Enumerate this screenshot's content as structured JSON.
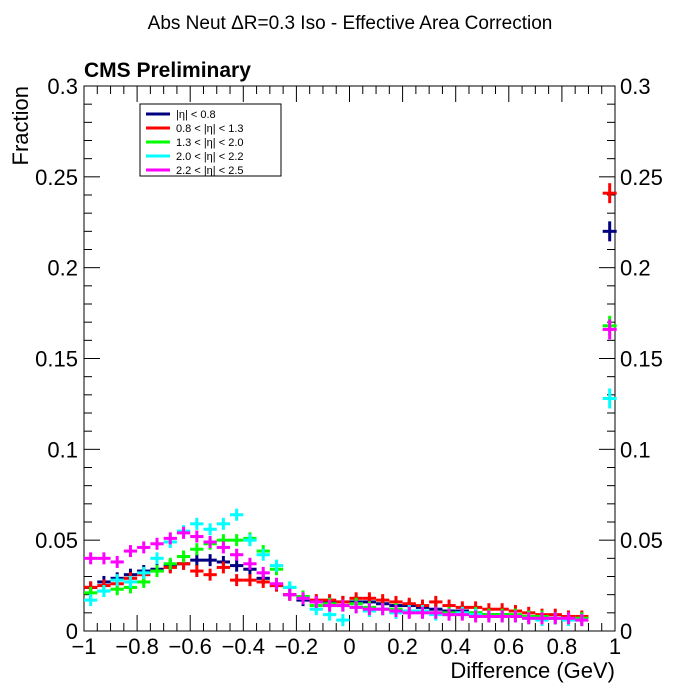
{
  "chart_data": {
    "type": "scatter",
    "title": "Abs Neut ΔR=0.3 Iso - Effective Area Correction",
    "label": "CMS Preliminary",
    "xlabel": "Difference (GeV)",
    "ylabel": "Fraction",
    "xlim": [
      -1,
      1
    ],
    "ylim": [
      0,
      0.3
    ],
    "xticks": [
      -1,
      -0.8,
      -0.6,
      -0.4,
      -0.2,
      0,
      0.2,
      0.4,
      0.6,
      0.8,
      1
    ],
    "xtick_labels": [
      "−1",
      "−0.8",
      "−0.6",
      "−0.4",
      "−0.2",
      "0",
      "0.2",
      "0.4",
      "0.6",
      "0.8",
      "1"
    ],
    "yticks": [
      0,
      0.05,
      0.1,
      0.15,
      0.2,
      0.25,
      0.3
    ],
    "ytick_labels": [
      "0",
      "0.05",
      "0.1",
      "0.15",
      "0.2",
      "0.25",
      "0.3"
    ],
    "bin_width": 0.05,
    "overflow_x": 0.98,
    "legend_position": "top-left",
    "series": [
      {
        "name": "|η| < 0.8",
        "color": "#000080",
        "values": [
          0.024,
          0.027,
          0.029,
          0.031,
          0.033,
          0.034,
          0.036,
          0.037,
          0.039,
          0.039,
          0.038,
          0.036,
          0.034,
          0.029,
          0.025,
          0.02,
          0.017,
          0.016,
          0.016,
          0.016,
          0.016,
          0.016,
          0.015,
          0.014,
          0.014,
          0.013,
          0.012,
          0.011,
          0.011,
          0.01,
          0.009,
          0.009,
          0.008,
          0.008,
          0.007,
          0.007,
          0.007,
          0.007
        ],
        "overflow": 0.22
      },
      {
        "name": "0.8 < |η| < 1.3",
        "color": "#ff0000",
        "values": [
          0.024,
          0.025,
          0.026,
          0.029,
          0.031,
          0.033,
          0.035,
          0.037,
          0.033,
          0.031,
          0.035,
          0.028,
          0.028,
          0.027,
          0.025,
          0.02,
          0.019,
          0.017,
          0.017,
          0.016,
          0.018,
          0.018,
          0.017,
          0.016,
          0.015,
          0.014,
          0.016,
          0.014,
          0.013,
          0.013,
          0.012,
          0.012,
          0.011,
          0.01,
          0.009,
          0.009,
          0.008,
          0.008
        ],
        "overflow": 0.241
      },
      {
        "name": "1.3 < |η| < 2.0",
        "color": "#00ff00",
        "values": [
          0.021,
          0.022,
          0.023,
          0.024,
          0.027,
          0.033,
          0.037,
          0.041,
          0.045,
          0.048,
          0.05,
          0.05,
          0.051,
          0.044,
          0.034,
          0.024,
          0.019,
          0.014,
          0.015,
          0.014,
          0.015,
          0.013,
          0.012,
          0.012,
          0.011,
          0.011,
          0.01,
          0.01,
          0.01,
          0.01,
          0.009,
          0.009,
          0.009,
          0.008,
          0.008,
          0.007,
          0.007,
          0.007
        ],
        "overflow": 0.168
      },
      {
        "name": "2.0 < |η| < 2.2",
        "color": "#00ffff",
        "values": [
          0.017,
          0.022,
          0.028,
          0.027,
          0.032,
          0.04,
          0.049,
          0.055,
          0.059,
          0.056,
          0.059,
          0.064,
          0.05,
          0.042,
          0.036,
          0.024,
          0.018,
          0.012,
          0.009,
          0.006,
          0.013,
          0.011,
          0.012,
          0.01,
          0.011,
          0.011,
          0.009,
          0.009,
          0.01,
          0.009,
          0.008,
          0.008,
          0.008,
          0.007,
          0.006,
          0.007,
          0.006,
          0.006
        ],
        "overflow": 0.128
      },
      {
        "name": "2.2 < |η| < 2.5",
        "color": "#ff00ff",
        "values": [
          0.04,
          0.04,
          0.038,
          0.044,
          0.046,
          0.048,
          0.051,
          0.054,
          0.052,
          0.049,
          0.046,
          0.042,
          0.037,
          0.032,
          0.026,
          0.02,
          0.018,
          0.016,
          0.014,
          0.014,
          0.013,
          0.012,
          0.012,
          0.011,
          0.01,
          0.01,
          0.01,
          0.009,
          0.009,
          0.008,
          0.008,
          0.008,
          0.008,
          0.007,
          0.007,
          0.007,
          0.007,
          0.006
        ],
        "overflow": 0.166
      }
    ]
  }
}
